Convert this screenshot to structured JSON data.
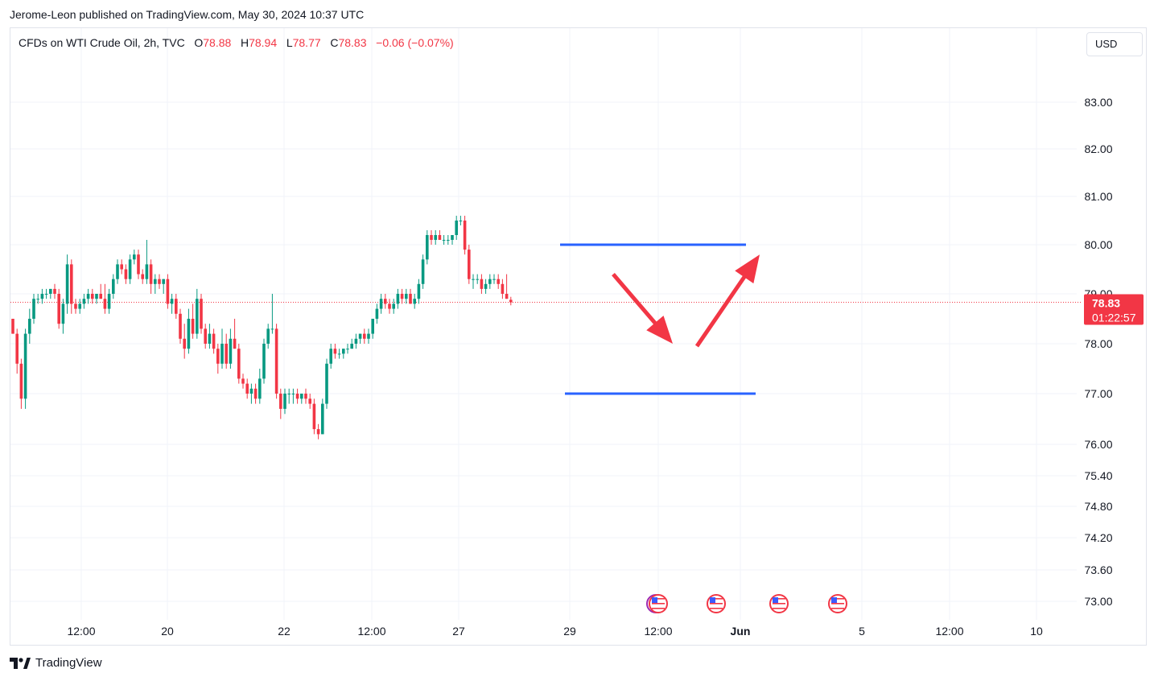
{
  "header": {
    "publisher_line": "Jerome-Leon published on TradingView.com, May 30, 2024 10:37 UTC"
  },
  "legend": {
    "symbol": "CFDs on WTI Crude Oil, 2h, TVC",
    "open_label": "O",
    "open": "78.88",
    "high_label": "H",
    "high": "78.94",
    "low_label": "L",
    "low": "78.77",
    "close_label": "C",
    "close": "78.83",
    "change": "−0.06 (−0.07%)"
  },
  "currency": "USD",
  "footer": {
    "logo_mark": "𝟭𝟳",
    "brand": "TradingView"
  },
  "colors": {
    "up": "#089981",
    "down": "#f23645",
    "level_line": "#2962ff",
    "arrow": "#f23645",
    "grid": "#f0f3fa"
  },
  "chart_data": {
    "type": "candlestick",
    "symbol": "CFDs on WTI Crude Oil",
    "interval": "2h",
    "y_ticks": [
      "83.00",
      "82.00",
      "81.00",
      "80.00",
      "79.00",
      "78.00",
      "77.00",
      "76.00",
      "75.40",
      "74.80",
      "74.20",
      "73.60",
      "73.00"
    ],
    "x_ticks": [
      "12:00",
      "20",
      "22",
      "12:00",
      "27",
      "29",
      "12:00",
      "Jun",
      "5",
      "12:00",
      "10"
    ],
    "last_price": "78.83",
    "countdown": "01:22:57",
    "candles": [
      [
        78.5,
        78.5,
        78.2,
        78.2
      ],
      [
        78.2,
        78.3,
        77.4,
        77.6
      ],
      [
        77.6,
        77.7,
        76.7,
        76.9
      ],
      [
        76.9,
        78.3,
        76.7,
        78.2
      ],
      [
        78.2,
        78.7,
        78.0,
        78.5
      ],
      [
        78.5,
        79.0,
        78.4,
        78.9
      ],
      [
        78.9,
        79.0,
        78.8,
        78.9
      ],
      [
        78.9,
        79.1,
        78.8,
        79.0
      ],
      [
        79.0,
        79.1,
        78.9,
        79.0
      ],
      [
        79.0,
        79.1,
        78.9,
        79.1
      ],
      [
        79.1,
        79.2,
        78.9,
        79.0
      ],
      [
        79.0,
        79.1,
        78.3,
        78.4
      ],
      [
        78.4,
        78.9,
        78.2,
        78.8
      ],
      [
        78.8,
        79.8,
        78.6,
        79.6
      ],
      [
        79.6,
        79.7,
        78.6,
        78.8
      ],
      [
        78.8,
        78.9,
        78.6,
        78.7
      ],
      [
        78.7,
        78.9,
        78.6,
        78.8
      ],
      [
        78.8,
        79.0,
        78.7,
        78.9
      ],
      [
        78.9,
        79.1,
        78.8,
        79.0
      ],
      [
        79.0,
        79.1,
        78.8,
        78.9
      ],
      [
        78.9,
        79.0,
        78.8,
        79.0
      ],
      [
        79.0,
        79.2,
        78.9,
        78.9
      ],
      [
        78.9,
        79.2,
        78.6,
        78.7
      ],
      [
        78.7,
        79.1,
        78.6,
        79.0
      ],
      [
        79.0,
        79.4,
        78.9,
        79.3
      ],
      [
        79.3,
        79.7,
        79.2,
        79.6
      ],
      [
        79.6,
        79.7,
        79.4,
        79.5
      ],
      [
        79.5,
        79.6,
        79.2,
        79.3
      ],
      [
        79.3,
        79.8,
        79.2,
        79.7
      ],
      [
        79.7,
        79.9,
        79.6,
        79.8
      ],
      [
        79.8,
        79.9,
        79.3,
        79.4
      ],
      [
        79.4,
        79.5,
        79.2,
        79.3
      ],
      [
        79.3,
        80.1,
        79.2,
        79.6
      ],
      [
        79.6,
        79.7,
        79.0,
        79.2
      ],
      [
        79.2,
        79.4,
        79.0,
        79.3
      ],
      [
        79.3,
        79.4,
        79.1,
        79.2
      ],
      [
        79.2,
        79.3,
        79.0,
        79.3
      ],
      [
        79.3,
        79.4,
        78.7,
        78.8
      ],
      [
        78.8,
        79.0,
        78.6,
        78.9
      ],
      [
        78.9,
        79.0,
        78.5,
        78.6
      ],
      [
        78.6,
        78.7,
        78.0,
        78.1
      ],
      [
        78.1,
        78.4,
        77.7,
        77.9
      ],
      [
        77.9,
        78.7,
        77.8,
        78.5
      ],
      [
        78.5,
        78.8,
        78.1,
        78.2
      ],
      [
        78.2,
        79.1,
        78.1,
        78.9
      ],
      [
        78.9,
        79.0,
        78.2,
        78.3
      ],
      [
        78.3,
        78.4,
        77.9,
        78.0
      ],
      [
        78.0,
        78.4,
        77.9,
        78.2
      ],
      [
        78.2,
        78.3,
        77.8,
        77.9
      ],
      [
        77.9,
        78.0,
        77.4,
        77.6
      ],
      [
        77.6,
        78.3,
        77.5,
        78.0
      ],
      [
        78.0,
        78.2,
        77.5,
        77.6
      ],
      [
        77.6,
        78.3,
        77.5,
        78.1
      ],
      [
        78.1,
        78.5,
        77.9,
        77.9
      ],
      [
        77.9,
        78.0,
        77.2,
        77.3
      ],
      [
        77.3,
        77.4,
        77.1,
        77.2
      ],
      [
        77.2,
        77.3,
        76.9,
        77.0
      ],
      [
        77.0,
        77.2,
        76.8,
        77.1
      ],
      [
        77.1,
        77.2,
        76.8,
        76.9
      ],
      [
        76.9,
        77.5,
        76.8,
        77.3
      ],
      [
        77.3,
        78.1,
        77.2,
        78.0
      ],
      [
        78.0,
        78.4,
        77.9,
        78.3
      ],
      [
        78.3,
        79.0,
        78.2,
        78.3
      ],
      [
        78.3,
        78.4,
        76.9,
        77.0
      ],
      [
        77.0,
        77.1,
        76.5,
        76.7
      ],
      [
        76.7,
        77.1,
        76.6,
        77.0
      ],
      [
        77.0,
        77.1,
        76.8,
        77.0
      ],
      [
        77.0,
        77.1,
        76.8,
        77.0
      ],
      [
        77.0,
        77.1,
        76.8,
        76.9
      ],
      [
        76.9,
        77.0,
        76.8,
        77.0
      ],
      [
        77.0,
        77.1,
        76.8,
        76.9
      ],
      [
        76.9,
        77.0,
        76.7,
        76.8
      ],
      [
        76.8,
        76.9,
        76.2,
        76.3
      ],
      [
        76.3,
        76.4,
        76.1,
        76.2
      ],
      [
        76.2,
        76.9,
        76.2,
        76.8
      ],
      [
        76.8,
        77.7,
        76.7,
        77.6
      ],
      [
        77.6,
        78.0,
        77.5,
        77.9
      ],
      [
        77.9,
        78.0,
        77.7,
        77.8
      ],
      [
        77.8,
        77.9,
        77.7,
        77.8
      ],
      [
        77.8,
        77.9,
        77.7,
        77.9
      ],
      [
        77.9,
        78.0,
        77.8,
        77.9
      ],
      [
        77.9,
        78.1,
        77.9,
        78.0
      ],
      [
        78.0,
        78.2,
        77.9,
        78.1
      ],
      [
        78.1,
        78.2,
        78.0,
        78.2
      ],
      [
        78.2,
        78.3,
        78.0,
        78.1
      ],
      [
        78.1,
        78.3,
        78.0,
        78.2
      ],
      [
        78.2,
        78.5,
        78.1,
        78.5
      ],
      [
        78.5,
        78.8,
        78.4,
        78.7
      ],
      [
        78.7,
        79.0,
        78.6,
        78.9
      ],
      [
        78.9,
        79.0,
        78.7,
        78.8
      ],
      [
        78.8,
        78.9,
        78.6,
        78.7
      ],
      [
        78.7,
        78.9,
        78.6,
        78.8
      ],
      [
        78.8,
        79.1,
        78.7,
        79.0
      ],
      [
        79.0,
        79.1,
        78.8,
        78.9
      ],
      [
        78.9,
        79.1,
        78.8,
        79.0
      ],
      [
        79.0,
        79.1,
        78.8,
        78.8
      ],
      [
        78.8,
        79.0,
        78.7,
        78.9
      ],
      [
        78.9,
        79.3,
        78.8,
        79.2
      ],
      [
        79.2,
        79.8,
        79.1,
        79.7
      ],
      [
        79.7,
        80.3,
        79.6,
        80.2
      ],
      [
        80.2,
        80.3,
        80.0,
        80.1
      ],
      [
        80.1,
        80.3,
        80.0,
        80.2
      ],
      [
        80.2,
        80.3,
        80.1,
        80.1
      ],
      [
        80.1,
        80.2,
        80.0,
        80.1
      ],
      [
        80.1,
        80.2,
        80.0,
        80.1
      ],
      [
        80.1,
        80.2,
        80.0,
        80.2
      ],
      [
        80.2,
        80.6,
        80.1,
        80.5
      ],
      [
        80.5,
        80.6,
        80.4,
        80.5
      ],
      [
        80.5,
        80.6,
        79.8,
        79.9
      ],
      [
        79.9,
        80.0,
        79.2,
        79.3
      ],
      [
        79.3,
        79.4,
        79.1,
        79.3
      ],
      [
        79.3,
        79.4,
        79.2,
        79.3
      ],
      [
        79.3,
        79.4,
        79.0,
        79.1
      ],
      [
        79.1,
        79.3,
        79.0,
        79.2
      ],
      [
        79.2,
        79.4,
        79.1,
        79.3
      ],
      [
        79.3,
        79.4,
        79.2,
        79.3
      ],
      [
        79.3,
        79.4,
        79.1,
        79.2
      ],
      [
        79.2,
        79.3,
        78.9,
        79.0
      ],
      [
        79.0,
        79.4,
        78.9,
        78.9
      ],
      [
        78.88,
        78.94,
        78.77,
        78.83
      ]
    ],
    "level_lines": [
      80.0,
      77.0
    ],
    "annotation_arrows": [
      {
        "from": [
          0,
          79.4
        ],
        "to": [
          0,
          78.0
        ]
      },
      {
        "from": [
          0,
          77.95
        ],
        "to": [
          0,
          79.8
        ]
      }
    ],
    "event_flags": 4
  }
}
